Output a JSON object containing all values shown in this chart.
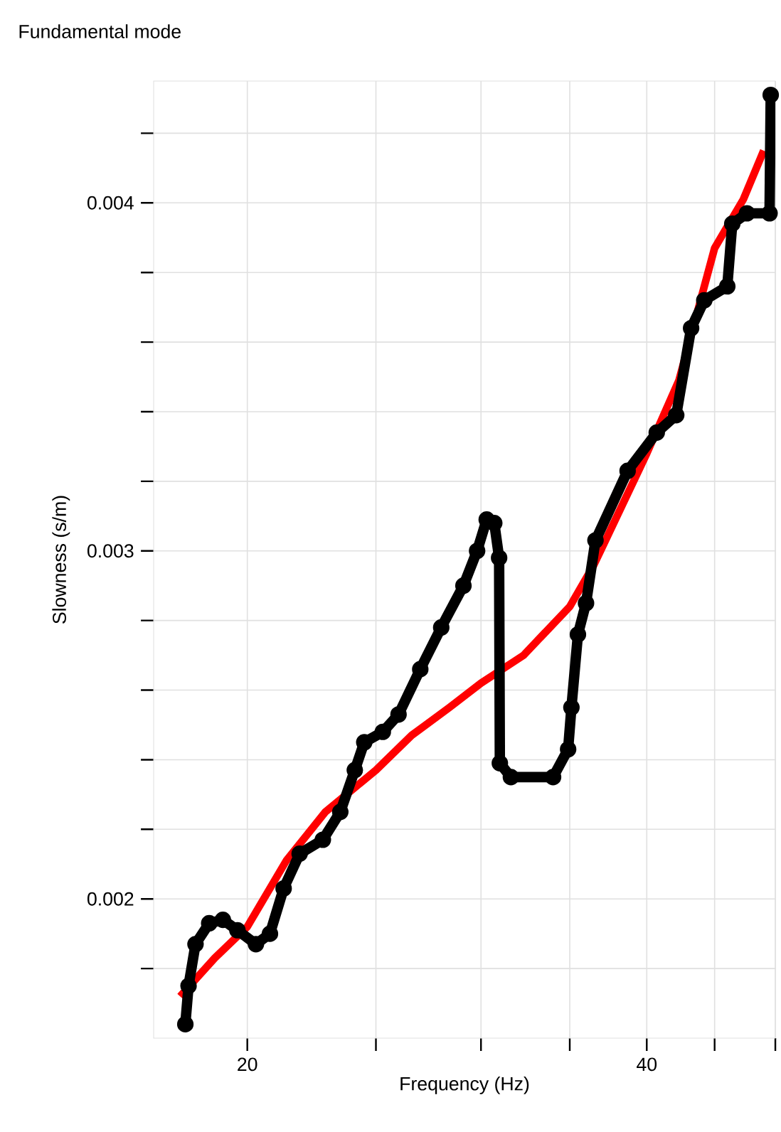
{
  "chart_data": {
    "type": "line",
    "title": "Fundamental mode",
    "xlabel": "Frequency (Hz)",
    "ylabel": "Slowness (s/m)",
    "log": "x",
    "grid": true,
    "xlim": [
      17,
      50
    ],
    "ylim": [
      0.0016,
      0.00435
    ],
    "xticks": [
      20,
      {
        "value": 25,
        "label": null
      },
      {
        "value": 30,
        "label": null
      },
      {
        "value": 35,
        "label": null
      },
      40,
      {
        "value": 45,
        "label": null
      },
      {
        "value": 50,
        "label": null
      }
    ],
    "yticks": [
      {
        "value": 0.0018,
        "label": null
      },
      0.002,
      {
        "value": 0.0022,
        "label": null
      },
      {
        "value": 0.0024,
        "label": null
      },
      {
        "value": 0.0026,
        "label": null
      },
      {
        "value": 0.0028,
        "label": null
      },
      0.003,
      {
        "value": 0.0032,
        "label": null
      },
      {
        "value": 0.0034,
        "label": null
      },
      {
        "value": 0.0036,
        "label": null
      },
      {
        "value": 0.0038,
        "label": null
      },
      0.004,
      {
        "value": 0.0042,
        "label": null
      }
    ],
    "series": [
      {
        "color": "#ff0000",
        "marker": "none",
        "x": [
          17.8,
          18.9,
          20.0,
          21.4,
          22.9,
          25.0,
          26.6,
          28.4,
          30.0,
          32.3,
          35.0,
          36.5,
          40.0,
          42.3,
          45.0,
          47.3,
          49.0
        ],
        "values": [
          0.00172,
          0.00183,
          0.00192,
          0.00211,
          0.00225,
          0.00237,
          0.00247,
          0.00255,
          0.00262,
          0.0027,
          0.00284,
          0.00296,
          0.00328,
          0.00349,
          0.00387,
          0.00401,
          0.00415
        ]
      },
      {
        "color": "#000000",
        "marker": "circle",
        "x": [
          17.96,
          18.06,
          18.28,
          18.72,
          19.17,
          19.66,
          20.3,
          20.8,
          21.3,
          21.9,
          22.8,
          23.5,
          24.1,
          24.5,
          25.3,
          26.0,
          27.0,
          28.0,
          29.1,
          29.8,
          30.3,
          30.7,
          30.96,
          31.0,
          31.6,
          34.0,
          34.9,
          35.1,
          35.5,
          36.0,
          36.6,
          38.7,
          40.7,
          42.1,
          43.2,
          44.2,
          46.0,
          46.4,
          47.6,
          49.5,
          49.6
        ],
        "values": [
          0.00164,
          0.00175,
          0.00187,
          0.00193,
          0.00194,
          0.00191,
          0.00187,
          0.0019,
          0.00203,
          0.00213,
          0.00217,
          0.00225,
          0.00237,
          0.00245,
          0.00248,
          0.00253,
          0.00266,
          0.00278,
          0.0029,
          0.003,
          0.00309,
          0.00308,
          0.00298,
          0.00239,
          0.00235,
          0.00235,
          0.00243,
          0.00255,
          0.00276,
          0.00285,
          0.00303,
          0.00323,
          0.00334,
          0.00339,
          0.00364,
          0.00372,
          0.00376,
          0.00394,
          0.00397,
          0.00397,
          0.00431
        ]
      }
    ]
  }
}
